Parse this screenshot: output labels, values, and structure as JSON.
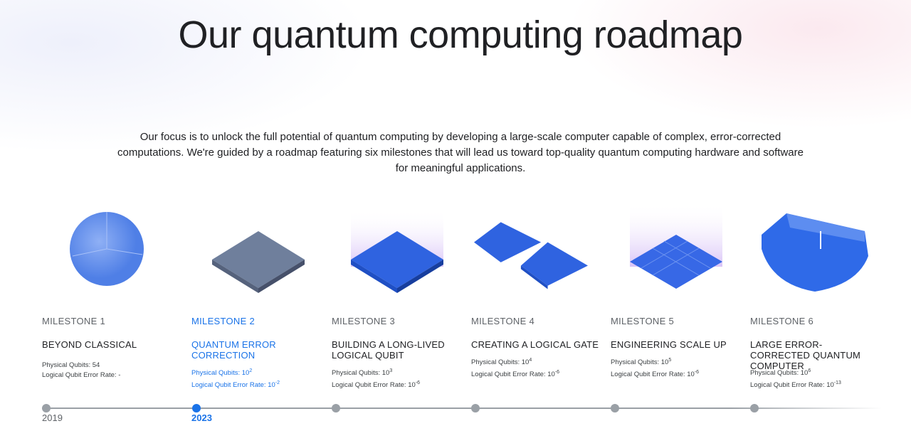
{
  "title": "Our quantum computing roadmap",
  "intro": "Our focus is to unlock the full potential of quantum computing by developing a large-scale computer capable of complex, error-corrected computations. We're guided by a roadmap featuring six milestones that will lead us toward top-quality quantum computing hardware and software for meaningful applications.",
  "accent_color": "#1a73e8",
  "milestones": [
    {
      "label": "MILESTONE 1",
      "title": "BEYOND CLASSICAL",
      "qubits_label": "Physical Qubits: ",
      "qubits": "54",
      "qubits_exp": "",
      "error_label": "Logical Qubit Error Rate: ",
      "error": "-",
      "error_exp": "",
      "year": "2019",
      "illustration": "sphere"
    },
    {
      "label": "MILESTONE 2",
      "title": "QUANTUM ERROR CORRECTION",
      "qubits_label": "Physical Qubits: ",
      "qubits": "10",
      "qubits_exp": "2",
      "error_label": "Logical Qubit Error Rate: ",
      "error": "10",
      "error_exp": "-2",
      "year": "2023",
      "active": true,
      "illustration": "grey-chip"
    },
    {
      "label": "MILESTONE 3",
      "title": "BUILDING A LONG-LIVED LOGICAL QUBIT",
      "qubits_label": "Physical Qubits: ",
      "qubits": "10",
      "qubits_exp": "3",
      "error_label": "Logical Qubit Error Rate: ",
      "error": "10",
      "error_exp": "-6",
      "illustration": "blue-chip"
    },
    {
      "label": "MILESTONE 4",
      "title": "CREATING A LOGICAL GATE",
      "qubits_label": "Physical Qubits: ",
      "qubits": "10",
      "qubits_exp": "4",
      "error_label": "Logical Qubit Error Rate: ",
      "error": "10",
      "error_exp": "-6",
      "illustration": "two-chips"
    },
    {
      "label": "MILESTONE 5",
      "title": "ENGINEERING SCALE UP",
      "qubits_label": "Physical Qubits: ",
      "qubits": "10",
      "qubits_exp": "5",
      "error_label": "Logical Qubit Error Rate: ",
      "error": "10",
      "error_exp": "-6",
      "illustration": "tiled-chip"
    },
    {
      "label": "MILESTONE 6",
      "title": "LARGE ERROR-CORRECTED QUANTUM COMPUTER",
      "qubits_label": "Physical Qubits: ",
      "qubits": "10",
      "qubits_exp": "6",
      "error_label": "Logical Qubit Error Rate: ",
      "error": "10",
      "error_exp": "-13",
      "illustration": "large-computer"
    }
  ]
}
